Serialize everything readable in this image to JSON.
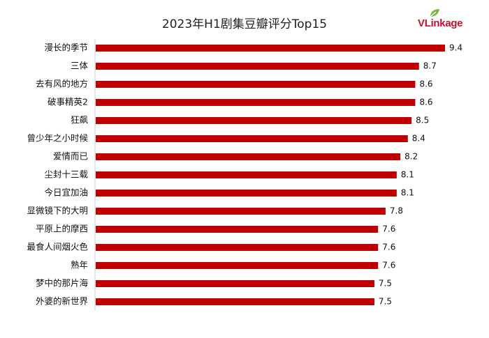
{
  "brand": {
    "logo_text": "VLinkage",
    "logo_icon": "leaf-icon",
    "accent_color": "#c8102e"
  },
  "chart_data": {
    "type": "bar",
    "orientation": "horizontal",
    "title": "2023年H1剧集豆瓣评分Top15",
    "xlabel": "",
    "ylabel": "",
    "xlim": [
      0,
      9.4
    ],
    "grid": false,
    "legend": "none",
    "bar_color": "#c00000",
    "categories": [
      "漫长的季节",
      "三体",
      "去有风的地方",
      "破事精英2",
      "狂飙",
      "曾少年之小时候",
      "爱情而已",
      "尘封十三载",
      "今日宜加油",
      "显微镜下的大明",
      "平原上的摩西",
      "最食人间烟火色",
      "熟年",
      "梦中的那片海",
      "外婆的新世界"
    ],
    "values": [
      9.4,
      8.7,
      8.6,
      8.6,
      8.5,
      8.4,
      8.2,
      8.1,
      8.1,
      7.8,
      7.6,
      7.6,
      7.6,
      7.5,
      7.5
    ]
  }
}
